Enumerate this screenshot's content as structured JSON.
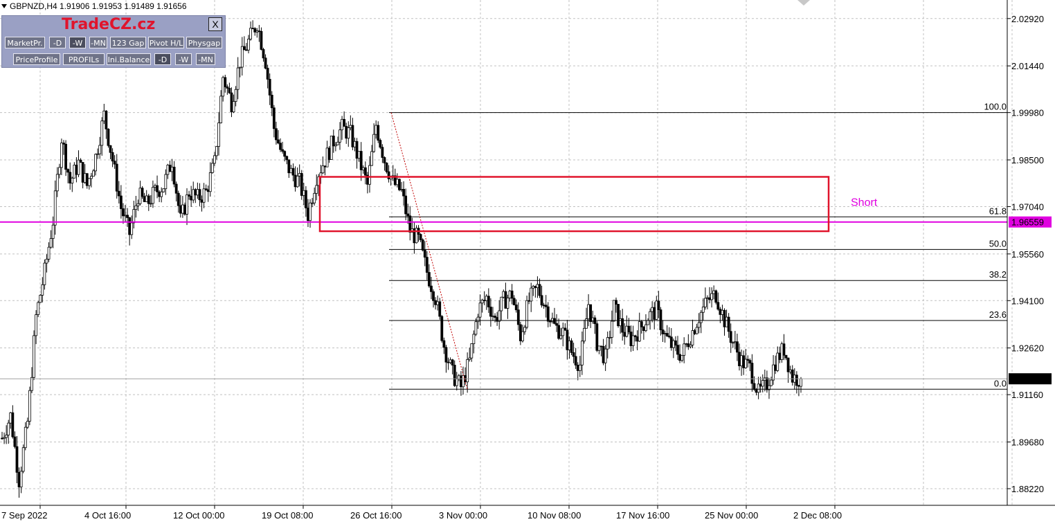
{
  "header": {
    "symbol_line": "GBPNZD,H4  1.91906 1.91953 1.91489 1.91656"
  },
  "panel": {
    "logo": "TradeCZ.cz",
    "close_label": "X",
    "row1": [
      "MarketPr.",
      "-D",
      "-W",
      "-MN",
      "123 Gap",
      "Pivot H/L",
      "Physgap"
    ],
    "row2": [
      "PriceProfile",
      "PROFILs",
      "Ini.Balance",
      "-D",
      "-W",
      "-MN"
    ]
  },
  "chart_data": {
    "type": "candlestick",
    "symbol": "GBPNZD",
    "timeframe": "H4",
    "ohlc_current": {
      "open": 1.91906,
      "high": 1.91953,
      "low": 1.91489,
      "close": 1.91656
    },
    "ylim": [
      1.877,
      2.035
    ],
    "y_ticks": [
      2.0292,
      2.0144,
      1.9998,
      1.985,
      1.9704,
      1.9556,
      1.941,
      1.9262,
      1.9116,
      1.8968,
      1.8822
    ],
    "y_tick_labels": [
      "2.02920",
      "2.01440",
      "1.99980",
      "1.98500",
      "1.97040",
      "1.95560",
      "1.94100",
      "1.92620",
      "1.91160",
      "1.89680",
      "1.88220"
    ],
    "x_tick_labels": [
      "7 Sep 2022",
      "4 Oct 16:00",
      "12 Oct 00:00",
      "19 Oct 08:00",
      "26 Oct 16:00",
      "3 Nov 00:00",
      "10 Nov 08:00",
      "17 Nov 16:00",
      "25 Nov 00:00",
      "2 Dec 08:00"
    ],
    "price_path": [
      [
        0,
        1.898
      ],
      [
        2,
        1.905
      ],
      [
        4,
        1.885
      ],
      [
        6,
        1.903
      ],
      [
        8,
        1.936
      ],
      [
        10,
        1.95
      ],
      [
        12,
        1.966
      ],
      [
        14,
        1.992
      ],
      [
        16,
        1.978
      ],
      [
        18,
        1.984
      ],
      [
        20,
        1.977
      ],
      [
        22,
        1.986
      ],
      [
        24,
        1.999
      ],
      [
        26,
        1.985
      ],
      [
        28,
        1.97
      ],
      [
        30,
        1.962
      ],
      [
        32,
        1.974
      ],
      [
        34,
        1.971
      ],
      [
        36,
        1.975
      ],
      [
        38,
        1.977
      ],
      [
        40,
        1.985
      ],
      [
        42,
        1.966
      ],
      [
        44,
        1.975
      ],
      [
        46,
        1.973
      ],
      [
        48,
        1.975
      ],
      [
        50,
        1.984
      ],
      [
        52,
        2.011
      ],
      [
        54,
        2.003
      ],
      [
        56,
        2.016
      ],
      [
        58,
        2.022
      ],
      [
        60,
        2.028
      ],
      [
        62,
        2.016
      ],
      [
        64,
        1.995
      ],
      [
        66,
        1.986
      ],
      [
        68,
        1.981
      ],
      [
        70,
        1.978
      ],
      [
        72,
        1.968
      ],
      [
        74,
        1.98
      ],
      [
        76,
        1.985
      ],
      [
        78,
        1.991
      ],
      [
        80,
        1.995
      ],
      [
        82,
        1.993
      ],
      [
        84,
        1.985
      ],
      [
        86,
        1.977
      ],
      [
        88,
        1.996
      ],
      [
        90,
        1.985
      ],
      [
        92,
        1.978
      ],
      [
        94,
        1.975
      ],
      [
        96,
        1.963
      ],
      [
        98,
        1.96
      ],
      [
        100,
        1.95
      ],
      [
        102,
        1.942
      ],
      [
        104,
        1.927
      ],
      [
        106,
        1.918
      ],
      [
        108,
        1.914
      ],
      [
        110,
        1.922
      ],
      [
        112,
        1.938
      ],
      [
        114,
        1.942
      ],
      [
        116,
        1.935
      ],
      [
        118,
        1.941
      ],
      [
        120,
        1.943
      ],
      [
        122,
        1.93
      ],
      [
        124,
        1.941
      ],
      [
        126,
        1.945
      ],
      [
        128,
        1.939
      ],
      [
        130,
        1.933
      ],
      [
        132,
        1.931
      ],
      [
        134,
        1.925
      ],
      [
        136,
        1.921
      ],
      [
        138,
        1.94
      ],
      [
        140,
        1.928
      ],
      [
        142,
        1.923
      ],
      [
        144,
        1.939
      ],
      [
        146,
        1.932
      ],
      [
        148,
        1.929
      ],
      [
        150,
        1.932
      ],
      [
        152,
        1.936
      ],
      [
        154,
        1.938
      ],
      [
        156,
        1.93
      ],
      [
        158,
        1.926
      ],
      [
        160,
        1.924
      ],
      [
        162,
        1.93
      ],
      [
        164,
        1.936
      ],
      [
        166,
        1.941
      ],
      [
        168,
        1.943
      ],
      [
        170,
        1.935
      ],
      [
        172,
        1.928
      ],
      [
        174,
        1.922
      ],
      [
        176,
        1.92
      ],
      [
        178,
        1.912
      ],
      [
        180,
        1.915
      ],
      [
        182,
        1.922
      ],
      [
        184,
        1.926
      ],
      [
        186,
        1.917
      ],
      [
        188,
        1.9166
      ]
    ],
    "fib_levels": [
      {
        "label": "100.0",
        "price": 1.9998
      },
      {
        "label": "61.8",
        "price": 1.9672
      },
      {
        "label": "50.0",
        "price": 1.957
      },
      {
        "label": "38.2",
        "price": 1.9473
      },
      {
        "label": "23.6",
        "price": 1.9348
      },
      {
        "label": "0.0",
        "price": 1.9133
      }
    ],
    "short_zone": {
      "label": "Short",
      "price_top": 1.9797,
      "price_bottom": 1.9627
    },
    "horizontal_line": {
      "price": 1.96559,
      "label": "1.96559",
      "color": "#e000e0"
    },
    "current_price": {
      "price": 1.91656,
      "label": "1.91656"
    },
    "colors": {
      "candle": "#000000",
      "grid": "#c0c0c0",
      "zone": "#e0142c",
      "short_text": "#e000e0",
      "fib": "#000000",
      "trend": "#c00000"
    }
  }
}
